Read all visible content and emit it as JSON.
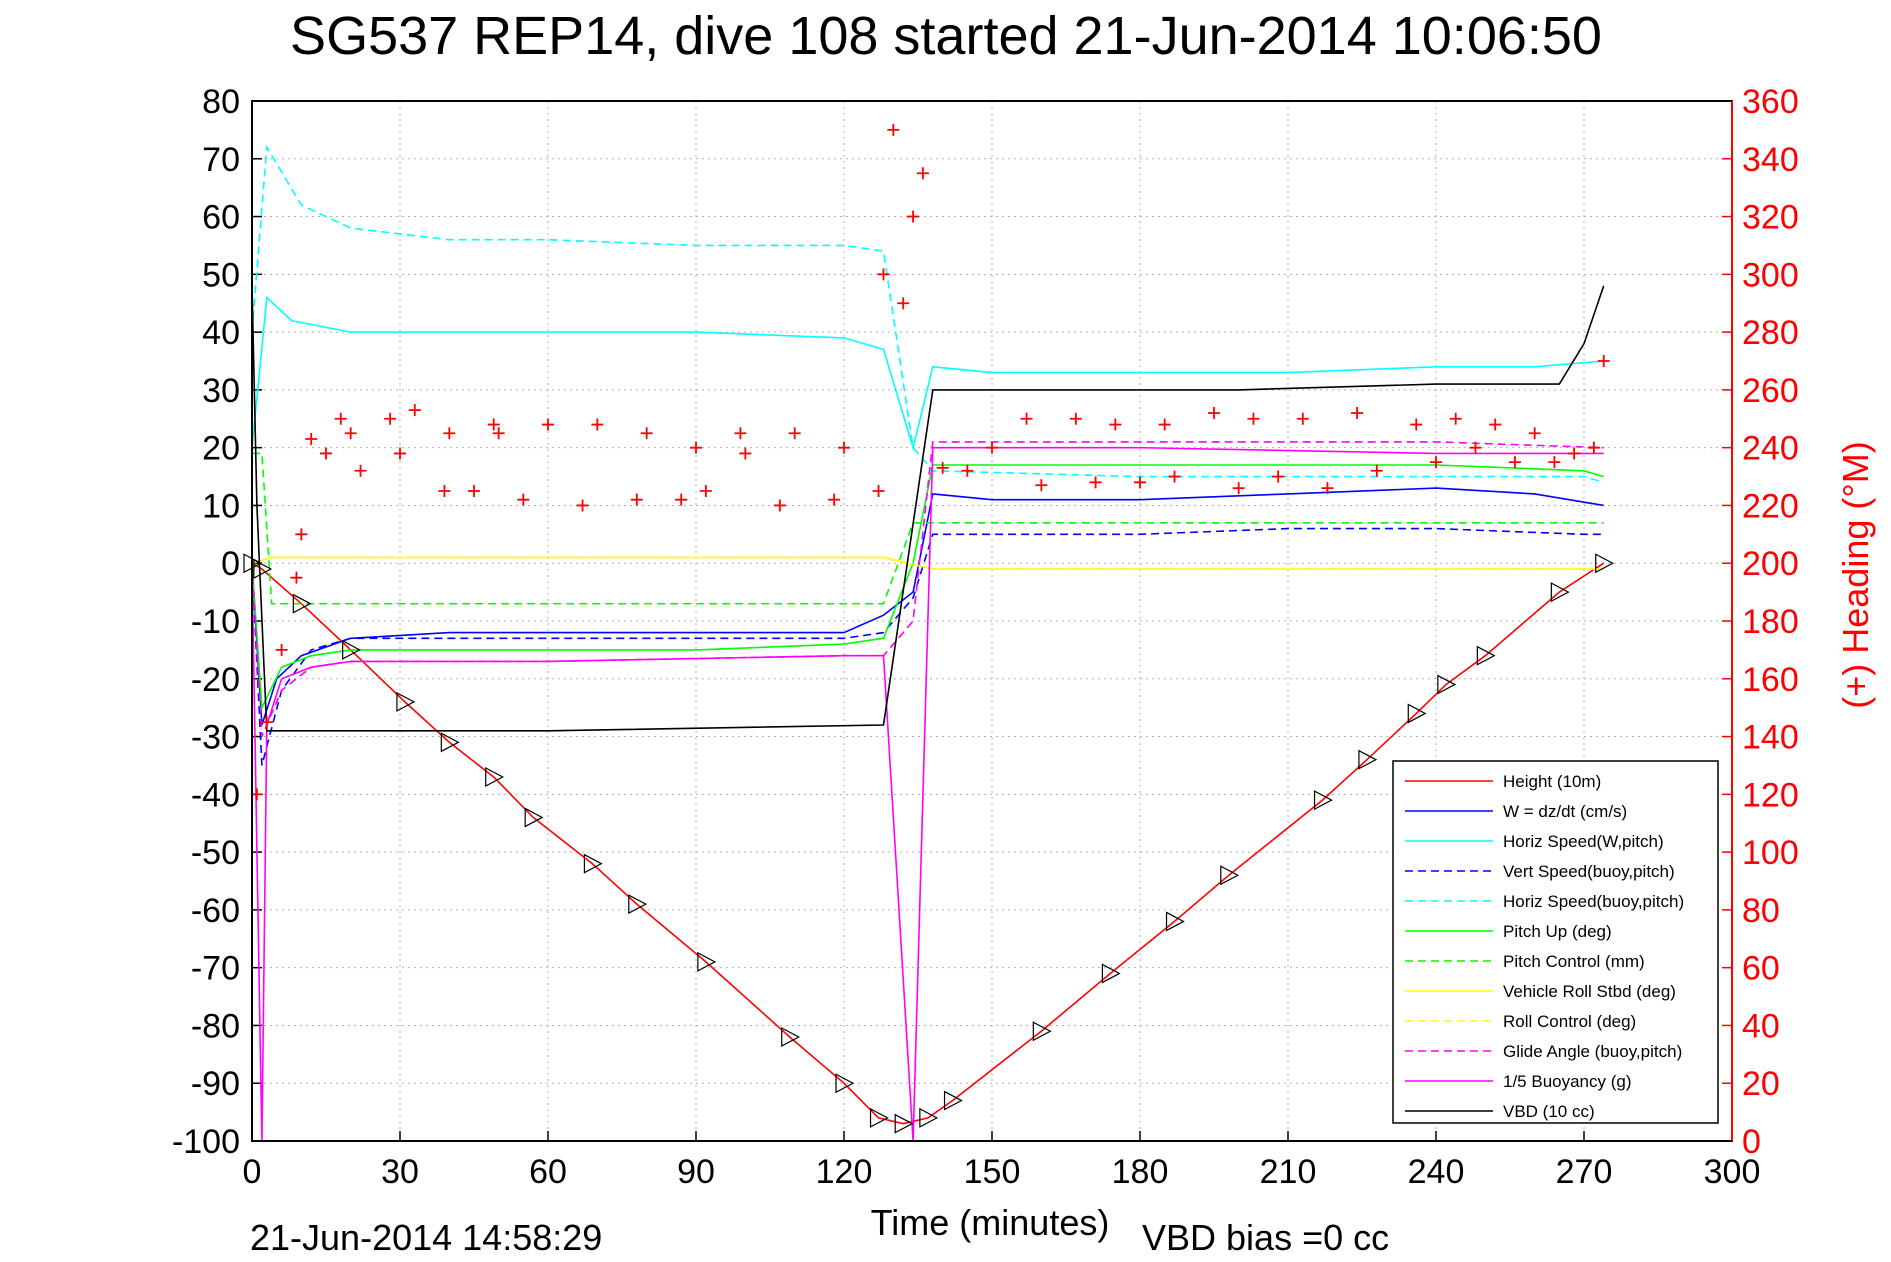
{
  "chart_data": {
    "type": "line",
    "title": "SG537 REP14, dive 108 started 21-Jun-2014 10:06:50",
    "xlabel": "Time (minutes)",
    "ylabel": "",
    "y2label": "(+) Heading (°M)",
    "xlim": [
      0,
      300
    ],
    "ylim": [
      -100,
      80
    ],
    "y2lim": [
      0,
      360
    ],
    "x_ticks": [
      0,
      30,
      60,
      90,
      120,
      150,
      180,
      210,
      240,
      270,
      300
    ],
    "y_ticks": [
      80,
      70,
      60,
      50,
      40,
      30,
      20,
      10,
      0,
      -10,
      -20,
      -30,
      -40,
      -50,
      -60,
      -70,
      -80,
      -90,
      -100
    ],
    "y2_ticks": [
      360,
      340,
      320,
      300,
      280,
      260,
      240,
      220,
      200,
      180,
      160,
      140,
      120,
      100,
      80,
      60,
      40,
      20,
      0
    ],
    "grid": true,
    "legend_position": "lower-right",
    "footer_left": "21-Jun-2014 14:58:29",
    "footer_right": "VBD bias =0 cc",
    "series": [
      {
        "name": "Height (10m)",
        "color": "#ff0000",
        "style": "solid",
        "x": [
          0,
          2,
          10,
          20,
          31,
          40,
          49,
          57,
          69,
          78,
          92,
          109,
          120,
          127,
          132,
          137,
          142,
          160,
          174,
          187,
          198,
          217,
          226,
          236,
          242,
          250,
          265,
          274
        ],
        "y": [
          0,
          -1,
          -7,
          -15,
          -24,
          -31,
          -37,
          -44,
          -52,
          -59,
          -69,
          -82,
          -90,
          -96,
          -97,
          -96,
          -93,
          -81,
          -71,
          -62,
          -54,
          -41,
          -34,
          -26,
          -21,
          -16,
          -5,
          0
        ]
      },
      {
        "name": "W = dz/dt (cm/s)",
        "color": "#0000ff",
        "style": "solid",
        "x": [
          0,
          2,
          5,
          10,
          20,
          40,
          60,
          90,
          120,
          128,
          134,
          138,
          150,
          180,
          210,
          240,
          260,
          274
        ],
        "y": [
          0,
          -28,
          -20,
          -16,
          -13,
          -12,
          -12,
          -12,
          -12,
          -9,
          -5,
          12,
          11,
          11,
          12,
          13,
          12,
          10
        ]
      },
      {
        "name": "Horiz Speed(W,pitch)",
        "color": "#00ffff",
        "style": "solid",
        "x": [
          0,
          3,
          8,
          20,
          60,
          90,
          120,
          128,
          134,
          138,
          150,
          180,
          210,
          240,
          260,
          274
        ],
        "y": [
          20,
          46,
          42,
          40,
          40,
          40,
          39,
          37,
          20,
          34,
          33,
          33,
          33,
          34,
          34,
          35
        ]
      },
      {
        "name": "Vert Speed(buoy,pitch)",
        "color": "#0000ff",
        "style": "dashed",
        "x": [
          0,
          2,
          6,
          12,
          20,
          60,
          120,
          128,
          134,
          138,
          180,
          210,
          240,
          270,
          274
        ],
        "y": [
          0,
          -35,
          -22,
          -15,
          -13,
          -13,
          -13,
          -12,
          -6,
          5,
          5,
          6,
          6,
          5,
          5
        ]
      },
      {
        "name": "Horiz Speed(buoy,pitch)",
        "color": "#00ffff",
        "style": "dashed",
        "x": [
          0,
          3,
          10,
          20,
          40,
          60,
          90,
          120,
          128,
          134,
          138,
          180,
          210,
          240,
          270,
          274
        ],
        "y": [
          40,
          72,
          62,
          58,
          56,
          56,
          55,
          55,
          54,
          20,
          16,
          15,
          15,
          15,
          15,
          14
        ]
      },
      {
        "name": "Pitch Up (deg)",
        "color": "#00ff00",
        "style": "solid",
        "x": [
          0,
          2,
          6,
          12,
          20,
          60,
          90,
          120,
          128,
          134,
          138,
          180,
          210,
          240,
          270,
          274
        ],
        "y": [
          0,
          -25,
          -18,
          -16,
          -15,
          -15,
          -15,
          -14,
          -13,
          0,
          17,
          17,
          17,
          17,
          16,
          15
        ]
      },
      {
        "name": "Pitch Control (mm)",
        "color": "#00ff00",
        "style": "dashed",
        "x": [
          0,
          2,
          4,
          60,
          120,
          128,
          134,
          138,
          180,
          240,
          274
        ],
        "y": [
          19,
          19,
          -7,
          -7,
          -7,
          -7,
          7,
          7,
          7,
          7,
          7
        ]
      },
      {
        "name": "Vehicle Roll Stbd (deg)",
        "color": "#ffff00",
        "style": "solid",
        "x": [
          0,
          4,
          60,
          120,
          128,
          138,
          180,
          240,
          274
        ],
        "y": [
          0,
          1,
          1,
          1,
          1,
          -1,
          -1,
          -1,
          -1
        ]
      },
      {
        "name": "Roll Control (deg)",
        "color": "#ffff00",
        "style": "dashed",
        "x": [
          0,
          4,
          60,
          120,
          128,
          138,
          180,
          240,
          274
        ],
        "y": [
          0,
          1,
          1,
          1,
          1,
          -1,
          -1,
          -1,
          -1
        ]
      },
      {
        "name": "Glide Angle (buoy,pitch)",
        "color": "#ff00ff",
        "style": "dashed",
        "x": [
          0,
          2,
          6,
          12,
          20,
          60,
          120,
          128,
          134,
          138,
          180,
          240,
          274
        ],
        "y": [
          0,
          -30,
          -22,
          -18,
          -17,
          -17,
          -16,
          -16,
          -10,
          21,
          21,
          21,
          20
        ]
      },
      {
        "name": "1/5 Buoyancy (g)",
        "color": "#ff00ff",
        "style": "solid",
        "x": [
          0,
          2,
          3,
          6,
          12,
          20,
          60,
          120,
          128,
          134,
          138,
          180,
          240,
          274
        ],
        "y": [
          0,
          -100,
          -28,
          -20,
          -18,
          -17,
          -17,
          -16,
          -16,
          -100,
          20,
          20,
          19,
          19
        ]
      },
      {
        "name": "VBD (10 cc)",
        "color": "#000000",
        "style": "solid",
        "x": [
          0,
          1,
          3,
          60,
          128,
          138,
          200,
          240,
          265,
          270,
          274
        ],
        "y": [
          48,
          10,
          -29,
          -29,
          -28,
          30,
          30,
          31,
          31,
          38,
          48
        ]
      }
    ],
    "heading_series": {
      "name": "(+) Heading (°M)",
      "color": "#ff0000",
      "marker": "+",
      "x": [
        1,
        3,
        6,
        9,
        10,
        12,
        15,
        18,
        20,
        22,
        28,
        30,
        33,
        39,
        40,
        45,
        49,
        50,
        55,
        60,
        67,
        70,
        78,
        80,
        87,
        90,
        92,
        99,
        100,
        107,
        110,
        118,
        120,
        127,
        128,
        130,
        132,
        134,
        136,
        140,
        145,
        150,
        157,
        160,
        167,
        171,
        175,
        180,
        185,
        187,
        195,
        200,
        203,
        208,
        213,
        218,
        224,
        228,
        236,
        240,
        244,
        248,
        252,
        256,
        260,
        264,
        268,
        272,
        274
      ],
      "y": [
        120,
        145,
        170,
        195,
        210,
        243,
        238,
        250,
        245,
        232,
        250,
        238,
        253,
        225,
        245,
        225,
        248,
        245,
        222,
        248,
        220,
        248,
        222,
        245,
        222,
        240,
        225,
        245,
        238,
        220,
        245,
        222,
        240,
        225,
        300,
        350,
        290,
        320,
        335,
        233,
        232,
        240,
        250,
        227,
        250,
        228,
        248,
        228,
        248,
        230,
        252,
        226,
        250,
        230,
        250,
        226,
        252,
        232,
        248,
        235,
        250,
        240,
        248,
        235,
        245,
        235,
        238,
        240,
        270
      ]
    }
  }
}
